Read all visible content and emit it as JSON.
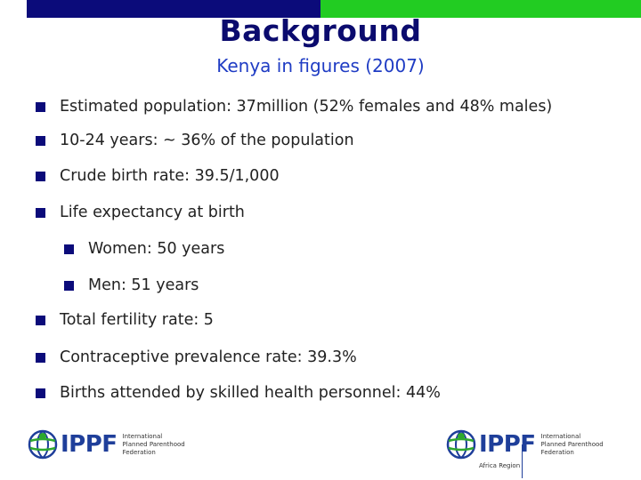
{
  "title": "Background",
  "subtitle": "Kenya in figures (2007)",
  "bullets": [
    "Estimated population: 37million (52% females and 48% males)",
    "10-24 years: ~ 36% of the population",
    "Crude birth rate: 39.5/1,000",
    "Life expectancy at birth",
    "Women: 50 years",
    "Men: 51 years",
    "Total fertility rate: 5",
    "Contraceptive prevalence rate: 39.3%",
    "Births attended by skilled health personnel: 44%"
  ],
  "logo_left": {
    "brand": "IPPF",
    "line1": "International",
    "line2": "Planned Parenthood",
    "line3": "Federation"
  },
  "logo_right": {
    "brand": "IPPF",
    "line1": "International",
    "line2": "Planned Parenthood",
    "line3": "Federation",
    "region": "Africa Region"
  },
  "colors": {
    "bar_blue": "#0b0b7a",
    "bar_green": "#22cc22",
    "title": "#0b0b6e",
    "subtitle": "#1f3cc4",
    "bullet_marker": "#0b0b7a"
  }
}
